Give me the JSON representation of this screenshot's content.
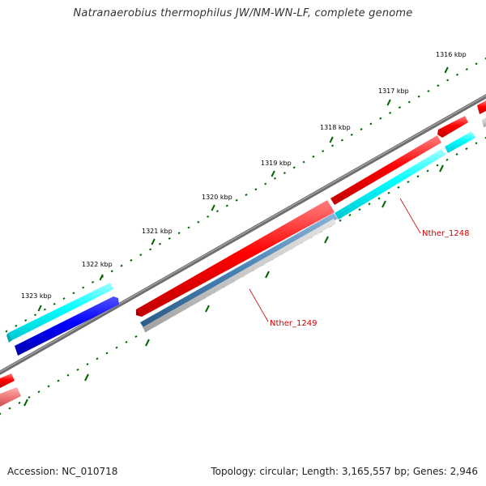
{
  "title": "Natranaerobius thermophilus JW/NM-WN-LF, complete genome",
  "footer": {
    "accession": "Accession: NC_010718",
    "stats": "Topology: circular; Length: 3,165,557 bp; Genes: 2,946"
  },
  "ticks": [
    {
      "label": "1316 kbp"
    },
    {
      "label": "1317 kbp"
    },
    {
      "label": "1318 kbp"
    },
    {
      "label": "1319 kbp"
    },
    {
      "label": "1320 kbp"
    },
    {
      "label": "1321 kbp"
    },
    {
      "label": "1322 kbp"
    },
    {
      "label": "1323 kbp"
    }
  ],
  "gene_labels": [
    {
      "text": "Nther_1248",
      "color": "#cc0000"
    },
    {
      "text": "Nther_1249",
      "color": "#cc0000"
    }
  ],
  "colors": {
    "backbone": "#808080",
    "forward_cds": "#ff0000",
    "reverse_cds": "#0000ff",
    "cyan_track": "#00ffff",
    "steel_track": "#4682b4",
    "grey_track": "#c8c8c8",
    "tick_marks": "#006400"
  }
}
